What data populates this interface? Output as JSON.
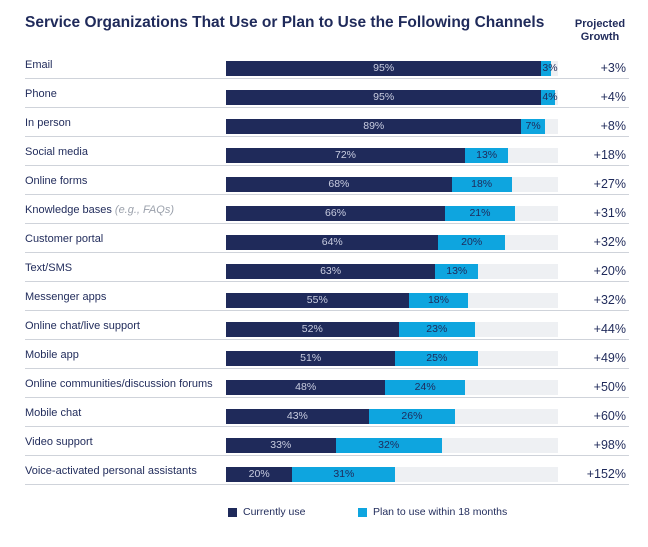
{
  "title": "Service Organizations That Use or Plan to Use the Following Channels",
  "growth_header": [
    "Projected",
    "Growth"
  ],
  "colors": {
    "currently_use": "#1f2a5a",
    "plan_to_use": "#0ea5df",
    "track": "#eef0f3"
  },
  "legend": {
    "currently_use": "Currently use",
    "plan_to_use": "Plan to use within 18 months"
  },
  "chart_data": {
    "type": "bar",
    "orientation": "horizontal",
    "stacked": true,
    "xlim": [
      0,
      100
    ],
    "categories": [
      "Email",
      "Phone",
      "In person",
      "Social media",
      "Online forms",
      "Knowledge bases",
      "Customer portal",
      "Text/SMS",
      "Messenger apps",
      "Online chat/live support",
      "Mobile app",
      "Online communities/discussion forums",
      "Mobile chat",
      "Video support",
      "Voice-activated personal assistants"
    ],
    "category_notes": [
      "",
      "",
      "",
      "",
      "",
      "(e.g., FAQs)",
      "",
      "",
      "",
      "",
      "",
      "",
      "",
      "",
      ""
    ],
    "series": [
      {
        "name": "Currently use",
        "values": [
          95,
          95,
          89,
          72,
          68,
          66,
          64,
          63,
          55,
          52,
          51,
          48,
          43,
          33,
          20
        ]
      },
      {
        "name": "Plan to use within 18 months",
        "values": [
          3,
          4,
          7,
          13,
          18,
          21,
          20,
          13,
          18,
          23,
          25,
          24,
          26,
          32,
          31
        ]
      }
    ],
    "projected_growth": [
      "+3%",
      "+4%",
      "+8%",
      "+18%",
      "+27%",
      "+31%",
      "+32%",
      "+20%",
      "+32%",
      "+44%",
      "+49%",
      "+50%",
      "+60%",
      "+98%",
      "+152%"
    ]
  }
}
